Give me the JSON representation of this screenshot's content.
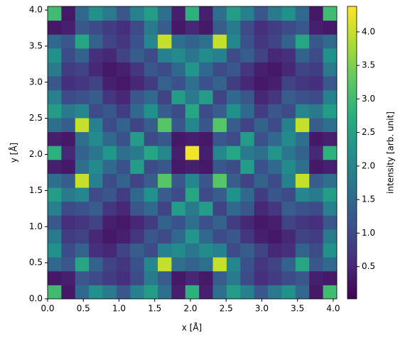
{
  "chart_data": {
    "type": "heatmap",
    "colormap": "viridis",
    "xlabel": "x [Å]",
    "ylabel": "y [Å]",
    "colorbar_label": "intensity [arb. unit]",
    "xlim": [
      0,
      4.05
    ],
    "ylim": [
      0,
      4.05
    ],
    "zlim": [
      0.02,
      4.38
    ],
    "xticks": [
      {
        "value": 0,
        "label": "0.0"
      },
      0.5,
      {
        "value": 1,
        "label": "1.0"
      },
      1.5,
      {
        "value": 2,
        "label": "2.0"
      },
      2.5,
      {
        "value": 3,
        "label": "3.0"
      },
      3.5,
      {
        "value": 4,
        "label": "4.0"
      }
    ],
    "yticks": [
      {
        "value": 0,
        "label": "0.0"
      },
      0.5,
      {
        "value": 1,
        "label": "1.0"
      },
      1.5,
      {
        "value": 2,
        "label": "2.0"
      },
      2.5,
      {
        "value": 3,
        "label": "3.0"
      },
      3.5,
      {
        "value": 4,
        "label": "4.0"
      }
    ],
    "zticks": [
      0.5,
      {
        "value": 1,
        "label": "1.0"
      },
      1.5,
      {
        "value": 2,
        "label": "2.0"
      },
      2.5,
      {
        "value": 3,
        "label": "3.0"
      },
      3.5,
      {
        "value": 4,
        "label": "4.0"
      }
    ],
    "z": [
      [
        3.0,
        0.3,
        1.5,
        2.2,
        1.8,
        1.2,
        1.9,
        2.4,
        1.6,
        0.4,
        2.8,
        0.4,
        1.6,
        2.4,
        1.9,
        1.2,
        1.8,
        2.2,
        1.5,
        0.3,
        3.0
      ],
      [
        0.3,
        0.4,
        1.2,
        1.0,
        0.8,
        0.6,
        1.0,
        1.8,
        1.3,
        0.3,
        0.5,
        0.3,
        1.3,
        1.8,
        1.0,
        0.6,
        0.8,
        1.0,
        1.2,
        0.4,
        0.3
      ],
      [
        1.5,
        1.2,
        2.6,
        1.4,
        0.9,
        0.7,
        1.1,
        2.0,
        4.0,
        1.6,
        1.4,
        1.6,
        4.0,
        2.0,
        1.1,
        0.7,
        0.9,
        1.4,
        2.6,
        1.2,
        1.5
      ],
      [
        2.2,
        1.0,
        1.4,
        0.6,
        0.5,
        0.9,
        1.3,
        1.0,
        1.9,
        2.1,
        1.7,
        2.1,
        1.9,
        1.0,
        1.3,
        0.9,
        0.5,
        0.6,
        1.4,
        1.0,
        2.2
      ],
      [
        1.8,
        0.8,
        0.9,
        0.5,
        0.3,
        0.4,
        0.7,
        1.2,
        1.0,
        1.5,
        2.3,
        1.5,
        1.0,
        1.2,
        0.7,
        0.4,
        0.3,
        0.5,
        0.9,
        0.8,
        1.8
      ],
      [
        1.2,
        0.6,
        0.7,
        0.9,
        0.4,
        0.3,
        0.5,
        0.8,
        1.4,
        1.1,
        1.6,
        1.1,
        1.4,
        0.8,
        0.5,
        0.3,
        0.4,
        0.9,
        0.7,
        0.6,
        1.2
      ],
      [
        1.9,
        1.0,
        1.1,
        1.3,
        0.7,
        0.5,
        1.2,
        1.5,
        0.9,
        2.4,
        1.8,
        2.4,
        0.9,
        1.5,
        1.2,
        0.5,
        0.7,
        1.3,
        1.1,
        1.0,
        1.9
      ],
      [
        2.4,
        1.8,
        2.0,
        1.0,
        1.2,
        0.8,
        1.5,
        2.2,
        1.3,
        1.0,
        2.6,
        1.0,
        1.3,
        2.2,
        1.5,
        0.8,
        1.2,
        1.0,
        2.0,
        1.8,
        2.4
      ],
      [
        1.6,
        1.3,
        4.0,
        1.9,
        1.0,
        1.4,
        0.9,
        1.3,
        3.2,
        1.2,
        2.0,
        1.2,
        3.2,
        1.3,
        0.9,
        1.4,
        1.0,
        1.9,
        4.0,
        1.3,
        1.6
      ],
      [
        0.4,
        0.3,
        1.6,
        2.1,
        1.5,
        1.1,
        2.4,
        1.0,
        1.2,
        0.3,
        0.4,
        0.3,
        1.2,
        1.0,
        2.4,
        1.1,
        1.5,
        2.1,
        1.6,
        0.3,
        0.4
      ],
      [
        2.8,
        0.5,
        1.4,
        1.7,
        2.3,
        1.6,
        1.8,
        2.6,
        2.0,
        0.4,
        4.3,
        0.4,
        2.0,
        2.6,
        1.8,
        1.6,
        2.3,
        1.7,
        1.4,
        0.5,
        2.8
      ],
      [
        0.4,
        0.3,
        1.6,
        2.1,
        1.5,
        1.1,
        2.4,
        1.0,
        1.2,
        0.3,
        0.4,
        0.3,
        1.2,
        1.0,
        2.4,
        1.1,
        1.5,
        2.1,
        1.6,
        0.3,
        0.4
      ],
      [
        1.6,
        1.3,
        4.0,
        1.9,
        1.0,
        1.4,
        0.9,
        1.3,
        3.2,
        1.2,
        2.0,
        1.2,
        3.2,
        1.3,
        0.9,
        1.4,
        1.0,
        1.9,
        4.0,
        1.3,
        1.6
      ],
      [
        2.4,
        1.8,
        2.0,
        1.0,
        1.2,
        0.8,
        1.5,
        2.2,
        1.3,
        1.0,
        2.6,
        1.0,
        1.3,
        2.2,
        1.5,
        0.8,
        1.2,
        1.0,
        2.0,
        1.8,
        2.4
      ],
      [
        1.9,
        1.0,
        1.1,
        1.3,
        0.7,
        0.5,
        1.2,
        1.5,
        0.9,
        2.4,
        1.8,
        2.4,
        0.9,
        1.5,
        1.2,
        0.5,
        0.7,
        1.3,
        1.1,
        1.0,
        1.9
      ],
      [
        1.2,
        0.6,
        0.7,
        0.9,
        0.4,
        0.3,
        0.5,
        0.8,
        1.4,
        1.1,
        1.6,
        1.1,
        1.4,
        0.8,
        0.5,
        0.3,
        0.4,
        0.9,
        0.7,
        0.6,
        1.2
      ],
      [
        1.8,
        0.8,
        0.9,
        0.5,
        0.3,
        0.4,
        0.7,
        1.2,
        1.0,
        1.5,
        2.3,
        1.5,
        1.0,
        1.2,
        0.7,
        0.4,
        0.3,
        0.5,
        0.9,
        0.8,
        1.8
      ],
      [
        2.2,
        1.0,
        1.4,
        0.6,
        0.5,
        0.9,
        1.3,
        1.0,
        1.9,
        2.1,
        1.7,
        2.1,
        1.9,
        1.0,
        1.3,
        0.9,
        0.5,
        0.6,
        1.4,
        1.0,
        2.2
      ],
      [
        1.5,
        1.2,
        2.6,
        1.4,
        0.9,
        0.7,
        1.1,
        2.0,
        4.0,
        1.6,
        1.4,
        1.6,
        4.0,
        2.0,
        1.1,
        0.7,
        0.9,
        1.4,
        2.6,
        1.2,
        1.5
      ],
      [
        0.3,
        0.4,
        1.2,
        1.0,
        0.8,
        0.6,
        1.0,
        1.8,
        1.3,
        0.3,
        0.5,
        0.3,
        1.3,
        1.8,
        1.0,
        0.6,
        0.8,
        1.0,
        1.2,
        0.4,
        0.3
      ],
      [
        3.0,
        0.3,
        1.5,
        2.2,
        1.8,
        1.2,
        1.9,
        2.4,
        1.6,
        0.4,
        2.8,
        0.4,
        1.6,
        2.4,
        1.9,
        1.2,
        1.8,
        2.2,
        1.5,
        0.3,
        3.0
      ]
    ]
  }
}
